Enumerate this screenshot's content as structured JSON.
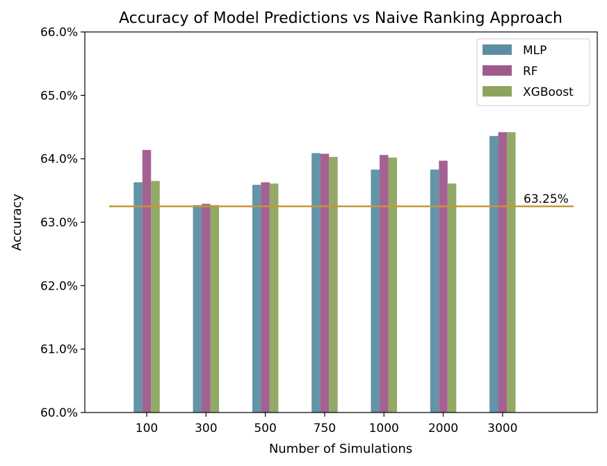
{
  "chart_data": {
    "type": "bar",
    "title": "Accuracy of Model Predictions vs Naive Ranking Approach",
    "xlabel": "Number of Simulations",
    "ylabel": "Accuracy",
    "categories": [
      "100",
      "300",
      "500",
      "750",
      "1000",
      "2000",
      "3000"
    ],
    "ylim": [
      60.0,
      66.0
    ],
    "yticks": [
      60.0,
      61.0,
      62.0,
      63.0,
      64.0,
      65.0,
      66.0
    ],
    "ytick_labels": [
      "60.0%",
      "61.0%",
      "62.0%",
      "63.0%",
      "64.0%",
      "65.0%",
      "66.0%"
    ],
    "series": [
      {
        "name": "MLP",
        "color": "#5b8ea3",
        "values": [
          63.63,
          63.27,
          63.59,
          64.09,
          63.83,
          63.83,
          64.36
        ]
      },
      {
        "name": "RF",
        "color": "#9e5a8c",
        "values": [
          64.14,
          63.29,
          63.63,
          64.08,
          64.06,
          63.97,
          64.42
        ]
      },
      {
        "name": "XGBoost",
        "color": "#8da45e",
        "values": [
          63.65,
          63.27,
          63.61,
          64.03,
          64.02,
          63.61,
          64.42
        ]
      }
    ],
    "reference_line": {
      "value": 63.25,
      "label": "63.25%",
      "color": "#c8953a"
    },
    "legend_position": "top-right",
    "grid": false
  }
}
